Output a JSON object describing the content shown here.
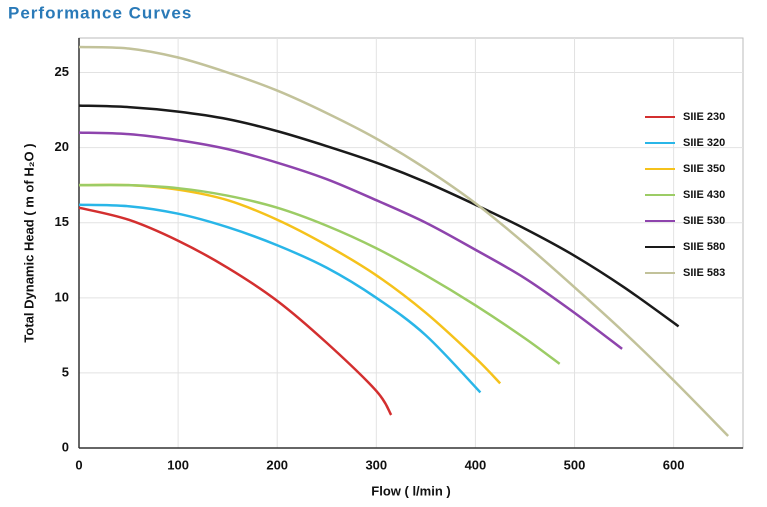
{
  "chart_data": {
    "type": "line",
    "title": "Performance Curves",
    "x_label": "Flow ( l/min )",
    "y_label": "Total Dynamic Head ( m of H₂O )",
    "xlim": [
      0,
      670
    ],
    "ylim": [
      0,
      27.3
    ],
    "xticks": [
      0,
      100,
      200,
      300,
      400,
      500,
      600
    ],
    "yticks": [
      0,
      5,
      10,
      15,
      20,
      25
    ],
    "grid": true,
    "legend": "right",
    "series": [
      {
        "name": "SIIE 230",
        "color": "#d32f2f",
        "x": [
          0,
          50,
          100,
          150,
          200,
          250,
          300,
          315
        ],
        "values": [
          16,
          15.2,
          13.8,
          12,
          9.8,
          7,
          3.8,
          2.2
        ]
      },
      {
        "name": "SIIE 320",
        "color": "#29b6e8",
        "x": [
          0,
          50,
          100,
          150,
          200,
          250,
          300,
          350,
          405
        ],
        "values": [
          16.2,
          16.1,
          15.6,
          14.7,
          13.5,
          12,
          10,
          7.5,
          3.7
        ]
      },
      {
        "name": "SIIE 350",
        "color": "#f5c21b",
        "x": [
          0,
          50,
          100,
          150,
          200,
          250,
          300,
          350,
          400,
          425
        ],
        "values": [
          17.5,
          17.5,
          17.2,
          16.5,
          15.2,
          13.5,
          11.5,
          9,
          6,
          4.3
        ]
      },
      {
        "name": "SIIE 430",
        "color": "#9ccc65",
        "x": [
          0,
          50,
          100,
          150,
          200,
          250,
          300,
          350,
          400,
          450,
          485
        ],
        "values": [
          17.5,
          17.5,
          17.3,
          16.8,
          16,
          14.8,
          13.3,
          11.5,
          9.5,
          7.3,
          5.6
        ]
      },
      {
        "name": "SIIE 530",
        "color": "#8e44ad",
        "x": [
          0,
          50,
          100,
          150,
          200,
          250,
          300,
          350,
          400,
          450,
          500,
          548
        ],
        "values": [
          21,
          20.9,
          20.5,
          19.9,
          19,
          17.9,
          16.5,
          15,
          13.2,
          11.3,
          9,
          6.6
        ]
      },
      {
        "name": "SIIE 580",
        "color": "#1a1a1a",
        "x": [
          0,
          50,
          100,
          150,
          200,
          250,
          300,
          350,
          400,
          450,
          500,
          550,
          605
        ],
        "values": [
          22.8,
          22.7,
          22.4,
          21.9,
          21.1,
          20.1,
          19,
          17.7,
          16.2,
          14.6,
          12.8,
          10.7,
          8.1
        ]
      },
      {
        "name": "SIIE 583",
        "color": "#c2c29a",
        "x": [
          0,
          50,
          100,
          150,
          200,
          250,
          300,
          350,
          400,
          450,
          500,
          550,
          600,
          655
        ],
        "values": [
          26.7,
          26.6,
          26,
          25,
          23.8,
          22.3,
          20.6,
          18.6,
          16.3,
          13.6,
          10.7,
          7.7,
          4.5,
          0.8
        ]
      }
    ]
  }
}
